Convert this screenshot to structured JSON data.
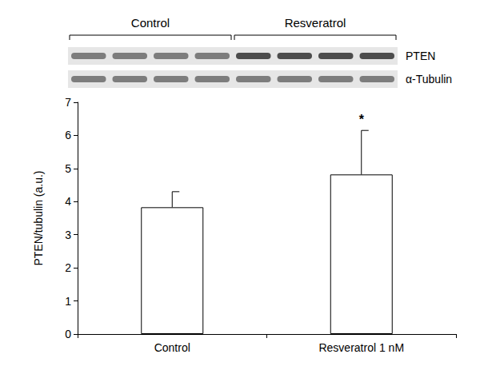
{
  "chart_data": {
    "type": "bar",
    "categories": [
      "Control",
      "Resveratrol 1 nM"
    ],
    "values": [
      3.83,
      4.82
    ],
    "errors": [
      0.47,
      1.33
    ],
    "color": "#ffffff",
    "ylabel": "PTEN/tubulin (a.u.)",
    "ylim": [
      0,
      7
    ],
    "yticks": [
      0,
      1,
      2,
      3,
      4,
      5,
      6,
      7
    ],
    "grid": false,
    "annotations": [
      {
        "text": "*",
        "category": "Resveratrol 1 nM"
      }
    ]
  },
  "blot": {
    "groups": [
      "Control",
      "Resveratrol"
    ],
    "rows": [
      "PTEN",
      "α-Tubulin"
    ]
  }
}
